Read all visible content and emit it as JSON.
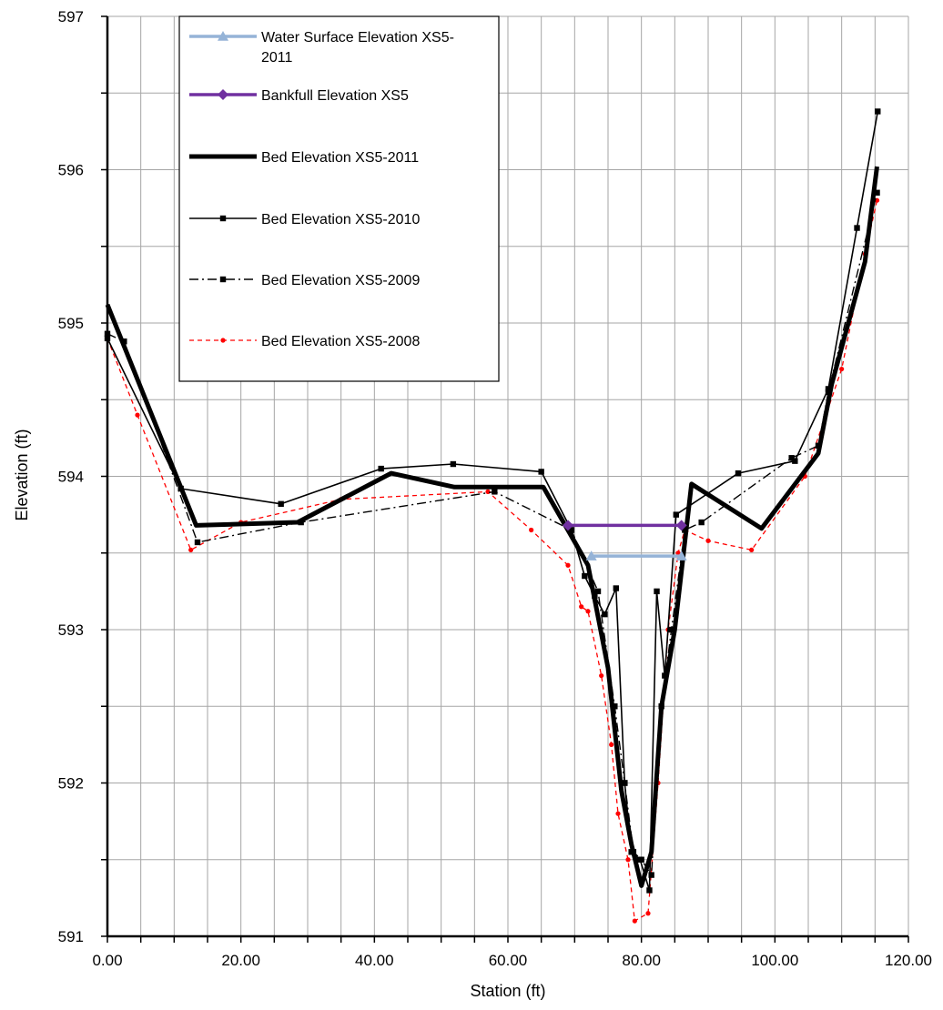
{
  "chart_data": {
    "type": "line",
    "title": "",
    "xlabel": "Station (ft)",
    "ylabel": "Elevation (ft)",
    "xlim": [
      0,
      120
    ],
    "ylim": [
      591,
      597
    ],
    "x_ticks": [
      "0.00",
      "20.00",
      "40.00",
      "60.00",
      "80.00",
      "100.00",
      "120.00"
    ],
    "y_ticks": [
      "591",
      "592",
      "593",
      "594",
      "595",
      "596",
      "597"
    ],
    "grid": true,
    "legend_position": "top-center",
    "series": [
      {
        "name": "Water Surface Elevation XS5-2011",
        "color": "#95b3d7",
        "style": "solid-triangle",
        "points": [
          [
            72.5,
            593.48
          ],
          [
            86.0,
            593.48
          ]
        ]
      },
      {
        "name": "Bankfull Elevation XS5",
        "color": "#7030a0",
        "style": "solid-diamond",
        "points": [
          [
            69.0,
            593.68
          ],
          [
            86.0,
            593.68
          ]
        ]
      },
      {
        "name": "Bed Elevation XS5-2011",
        "color": "#000000",
        "style": "thick",
        "points": [
          [
            0.0,
            595.12
          ],
          [
            13.3,
            593.68
          ],
          [
            28.5,
            593.7
          ],
          [
            42.5,
            594.02
          ],
          [
            52.0,
            593.93
          ],
          [
            65.3,
            593.93
          ],
          [
            72.0,
            593.42
          ],
          [
            75.0,
            592.75
          ],
          [
            77.0,
            591.95
          ],
          [
            78.5,
            591.6
          ],
          [
            80.0,
            591.33
          ],
          [
            81.5,
            591.55
          ],
          [
            83.0,
            592.5
          ],
          [
            85.0,
            593.0
          ],
          [
            87.5,
            593.95
          ],
          [
            98.0,
            593.66
          ],
          [
            106.5,
            594.15
          ],
          [
            108.5,
            594.6
          ],
          [
            113.5,
            595.4
          ],
          [
            115.3,
            596.02
          ]
        ]
      },
      {
        "name": "Bed Elevation XS5-2010",
        "color": "#000000",
        "style": "thin-square",
        "points": [
          [
            0.0,
            594.9
          ],
          [
            11.0,
            593.92
          ],
          [
            26.0,
            593.82
          ],
          [
            41.0,
            594.05
          ],
          [
            51.8,
            594.08
          ],
          [
            65.0,
            594.03
          ],
          [
            69.5,
            593.65
          ],
          [
            71.5,
            593.35
          ],
          [
            73.0,
            593.22
          ],
          [
            74.5,
            593.1
          ],
          [
            76.2,
            593.27
          ],
          [
            77.5,
            592.0
          ],
          [
            78.5,
            591.55
          ],
          [
            79.8,
            591.5
          ],
          [
            81.2,
            591.3
          ],
          [
            82.3,
            593.25
          ],
          [
            83.5,
            592.7
          ],
          [
            85.2,
            593.75
          ],
          [
            94.5,
            594.02
          ],
          [
            103.0,
            594.1
          ],
          [
            108.0,
            594.57
          ],
          [
            112.3,
            595.62
          ],
          [
            115.4,
            596.38
          ]
        ]
      },
      {
        "name": "Bed Elevation XS5-2009",
        "color": "#000000",
        "style": "dashdot-square",
        "points": [
          [
            0.0,
            594.93
          ],
          [
            2.5,
            594.88
          ],
          [
            13.5,
            593.57
          ],
          [
            29.0,
            593.7
          ],
          [
            58.0,
            593.9
          ],
          [
            69.5,
            593.65
          ],
          [
            73.5,
            593.25
          ],
          [
            76.0,
            592.5
          ],
          [
            77.5,
            592.0
          ],
          [
            78.8,
            591.55
          ],
          [
            80.0,
            591.5
          ],
          [
            81.5,
            591.4
          ],
          [
            83.0,
            592.5
          ],
          [
            84.5,
            593.0
          ],
          [
            86.5,
            593.65
          ],
          [
            89.0,
            593.7
          ],
          [
            102.5,
            594.12
          ],
          [
            106.5,
            594.2
          ],
          [
            108.0,
            594.55
          ],
          [
            115.3,
            595.85
          ]
        ]
      },
      {
        "name": "Bed Elevation XS5-2008",
        "color": "#ff0000",
        "style": "dashed-dot",
        "points": [
          [
            0.0,
            594.9
          ],
          [
            4.5,
            594.4
          ],
          [
            12.5,
            593.52
          ],
          [
            20.0,
            593.7
          ],
          [
            35.0,
            593.85
          ],
          [
            57.0,
            593.9
          ],
          [
            63.5,
            593.65
          ],
          [
            69.0,
            593.42
          ],
          [
            71.0,
            593.15
          ],
          [
            72.0,
            593.12
          ],
          [
            74.0,
            592.7
          ],
          [
            75.5,
            592.25
          ],
          [
            76.5,
            591.8
          ],
          [
            78.0,
            591.5
          ],
          [
            79.0,
            591.1
          ],
          [
            81.0,
            591.15
          ],
          [
            82.5,
            592.0
          ],
          [
            84.0,
            593.0
          ],
          [
            85.5,
            593.5
          ],
          [
            86.5,
            593.65
          ],
          [
            90.0,
            593.58
          ],
          [
            96.5,
            593.52
          ],
          [
            104.5,
            594.0
          ],
          [
            110.0,
            594.7
          ],
          [
            113.5,
            595.45
          ],
          [
            115.3,
            595.8
          ]
        ]
      }
    ]
  }
}
